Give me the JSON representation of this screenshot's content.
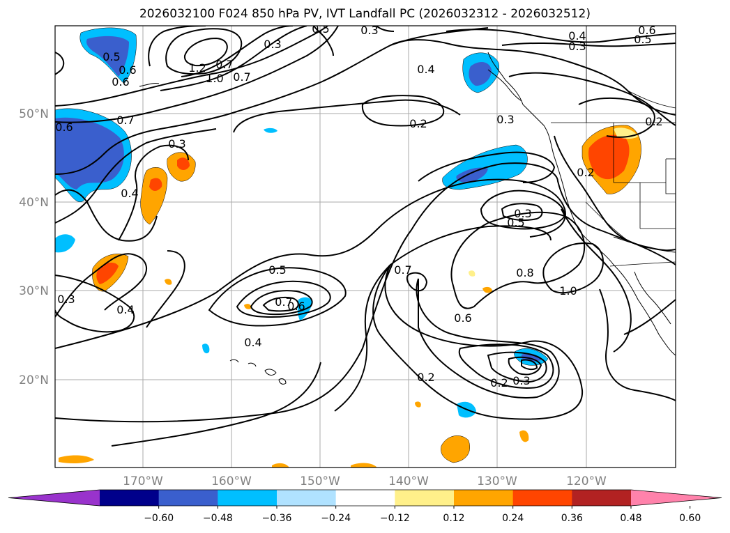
{
  "title": "2026032100 F024 850 hPa PV, IVT Landfall PC (2026032312 - 2026032512)",
  "latitude_labels": [
    "50°N",
    "40°N",
    "30°N",
    "20°N"
  ],
  "longitude_labels": [
    "170°W",
    "160°W",
    "150°W",
    "140°W",
    "130°W",
    "120°W"
  ],
  "colorbar": {
    "colors": [
      "#9933cc",
      "#00008b",
      "#3a5fcd",
      "#00bfff",
      "#b0e2ff",
      "#ffffff",
      "#fff08a",
      "#ffa500",
      "#ff4500",
      "#b22222",
      "#ff82ab"
    ],
    "tick_labels": [
      "−0.60",
      "−0.48",
      "−0.36",
      "−0.24",
      "−0.12",
      "0.12",
      "0.24",
      "0.36",
      "0.48",
      "0.60"
    ]
  },
  "contour_labels": [
    "0.3",
    "0.4",
    "0.3",
    "0.5",
    "0.6",
    "0.6",
    "0.5",
    "1.2",
    "1.0",
    "0.7",
    "0.3",
    "0.5",
    "0.6",
    "0.7",
    "0.4",
    "0.2",
    "0.3",
    "0.2",
    "0.2",
    "0.7",
    "0.6",
    "0.3",
    "0.4",
    "0.3",
    "0.4",
    "0.5",
    "0.7",
    "0.6",
    "0.4",
    "0.7",
    "0.6",
    "0.3",
    "0.5",
    "0.8",
    "1.0",
    "0.2",
    "0.2",
    "0.3"
  ]
}
